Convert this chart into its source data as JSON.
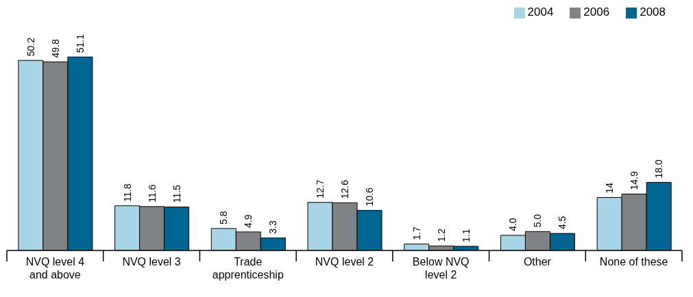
{
  "chart_data": {
    "type": "bar",
    "categories": [
      "NVQ level 4 and above",
      "NVQ level 3",
      "Trade apprenticeship",
      "NVQ level 2",
      "Below NVQ level 2",
      "Other",
      "None of these"
    ],
    "series": [
      {
        "name": "2004",
        "color": "#a9d4e6",
        "values": [
          50.2,
          11.8,
          5.8,
          12.7,
          1.7,
          4.0,
          14
        ],
        "value_labels": [
          "50.2",
          "11.8",
          "5.8",
          "12.7",
          "1.7",
          "4.0",
          "14"
        ]
      },
      {
        "name": "2006",
        "color": "#808285",
        "values": [
          49.8,
          11.6,
          4.9,
          12.6,
          1.2,
          5.0,
          14.9
        ],
        "value_labels": [
          "49.8",
          "11.6",
          "4.9",
          "12.6",
          "1.2",
          "5.0",
          "14.9"
        ]
      },
      {
        "name": "2008",
        "color": "#006591",
        "values": [
          51.1,
          11.5,
          3.3,
          10.6,
          1.1,
          4.5,
          18.0
        ],
        "value_labels": [
          "51.1",
          "11.5",
          "3.3",
          "10.6",
          "1.1",
          "4.5",
          "18.0"
        ]
      }
    ],
    "legend": "top right",
    "grid": false
  }
}
